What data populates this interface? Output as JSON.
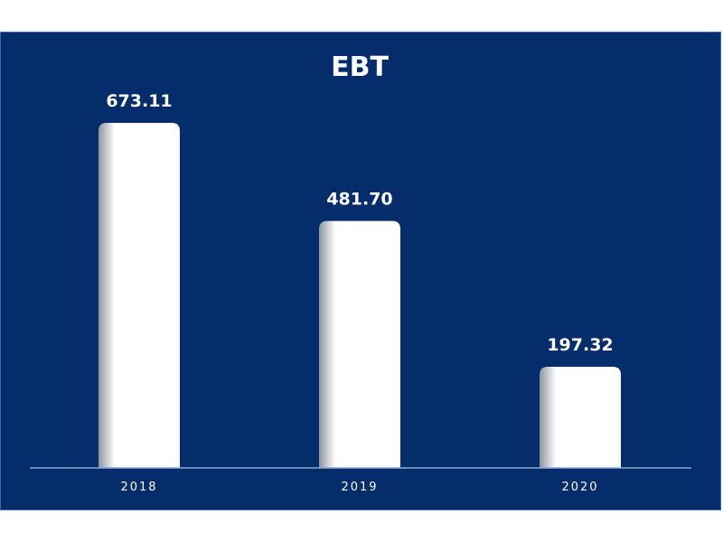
{
  "colors": {
    "background": "#062d6b",
    "bar": "#ffffff",
    "text": "#ffffff",
    "axis": "#8fa8d6"
  },
  "chart_data": {
    "type": "bar",
    "title": "EBT",
    "xlabel": "",
    "ylabel": "",
    "categories": [
      "2018",
      "2019",
      "2020"
    ],
    "values": [
      673.11,
      481.7,
      197.32
    ],
    "value_labels": [
      "673.11",
      "481.70",
      "197.32"
    ],
    "ylim": [
      0,
      673.11
    ],
    "grid": false,
    "legend": "none"
  }
}
